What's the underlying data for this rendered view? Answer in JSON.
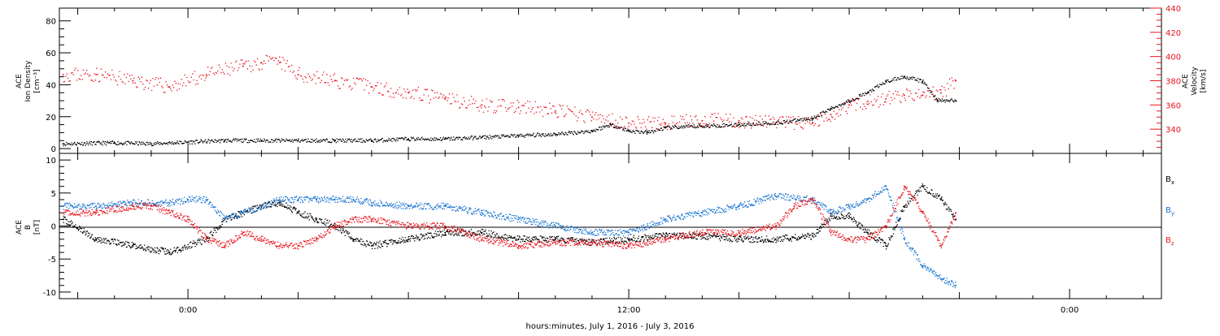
{
  "xaxis": {
    "label": "hours:minutes, July  1, 2016 - July  3, 2016",
    "tick_labels": [
      "0:00",
      "12:00",
      "0:00"
    ],
    "tick_hours": [
      0,
      12,
      24
    ],
    "range_hours": [
      -3.5,
      26.5
    ]
  },
  "chart_data": [
    {
      "type": "scatter",
      "panel": "top",
      "ylabel_left": [
        "ACE",
        "Ion Density",
        "[cm⁻³]"
      ],
      "ylabel_right": [
        "ACE",
        "Velocity",
        "[km/s]"
      ],
      "ylim_left": [
        -3,
        88
      ],
      "ylim_right": [
        320,
        440
      ],
      "left_ticks": [
        0,
        20,
        40,
        60,
        80
      ],
      "right_ticks": [
        340,
        360,
        380,
        400,
        420,
        440
      ],
      "grid": false,
      "series": [
        {
          "axis": "left",
          "color": "#000000",
          "x": [
            -3.4,
            -2,
            -1,
            0,
            1,
            2,
            3,
            4,
            5,
            6,
            7,
            8,
            9,
            10,
            11,
            11.5,
            12,
            12.5,
            13,
            14,
            15,
            16,
            17,
            17.5,
            18,
            18.5,
            19,
            19.5,
            20,
            20.4,
            20.9
          ],
          "y": [
            3,
            3.5,
            3,
            4,
            5,
            5,
            5,
            5,
            5,
            6,
            6,
            7,
            8,
            9,
            11,
            15,
            11,
            10,
            13,
            14,
            15,
            16,
            19,
            25,
            30,
            35,
            42,
            45,
            42,
            30,
            30
          ]
        },
        {
          "axis": "right",
          "color": "#e8141c",
          "x": [
            -3.4,
            -2.5,
            -1.5,
            -0.5,
            0.5,
            1.5,
            2,
            2.5,
            3,
            4,
            5,
            6,
            7,
            8,
            9,
            10,
            11,
            12,
            13,
            14,
            15,
            16,
            17,
            17.5,
            18,
            18.5,
            19,
            19.5,
            20,
            20.5,
            20.9
          ],
          "y": [
            385,
            385,
            380,
            375,
            385,
            392,
            395,
            395,
            385,
            380,
            375,
            370,
            365,
            360,
            358,
            355,
            350,
            345,
            345,
            347,
            347,
            345,
            345,
            352,
            360,
            363,
            365,
            368,
            368,
            370,
            380
          ]
        }
      ]
    },
    {
      "type": "scatter",
      "panel": "bottom",
      "ylabel_left": [
        "ACE",
        "B",
        "[nT]"
      ],
      "ylim": [
        -11,
        11
      ],
      "ticks": [
        -10,
        -5,
        0,
        5,
        10
      ],
      "zero_line": true,
      "grid": false,
      "series": [
        {
          "name": "B",
          "sub": "x",
          "color": "#000000",
          "x": [
            -3.4,
            -2.5,
            -1.5,
            -0.5,
            0.5,
            1,
            1.5,
            2,
            2.5,
            3,
            3.5,
            4,
            4.5,
            5,
            6,
            7,
            8,
            9,
            10,
            11,
            12,
            13,
            14,
            15,
            16,
            17,
            17.5,
            18,
            18.5,
            19,
            19.5,
            20,
            20.5,
            20.9
          ],
          "y": [
            1,
            -2,
            -3,
            -4,
            -2,
            1,
            2,
            3,
            3.5,
            2,
            1,
            0,
            -2,
            -3,
            -2,
            -1,
            -1,
            -2,
            -2,
            -2.5,
            -2,
            -1.5,
            -1.5,
            -2,
            -2,
            -1.5,
            1.5,
            1.5,
            -1,
            -3,
            3,
            6,
            4,
            1
          ]
        },
        {
          "name": "B",
          "sub": "y",
          "color": "#1a75d2",
          "x": [
            -3.4,
            -2.5,
            -1.5,
            -0.5,
            0,
            0.5,
            1,
            1.5,
            2,
            2.5,
            3,
            3.5,
            4,
            4.5,
            5,
            6,
            7,
            8,
            9,
            10,
            11,
            12,
            13,
            14,
            15,
            16,
            17,
            17.5,
            18,
            18.5,
            19,
            19.5,
            20,
            20.5,
            20.9
          ],
          "y": [
            3,
            3,
            3.5,
            3.5,
            4,
            4,
            1,
            2,
            3,
            4,
            4,
            4,
            4,
            4,
            3.5,
            3,
            3,
            2,
            1,
            0,
            -1,
            -1,
            1,
            2,
            3,
            4.5,
            4,
            2,
            3,
            4,
            6,
            -2,
            -6,
            -8,
            -9
          ]
        },
        {
          "name": "B",
          "sub": "z",
          "color": "#e8141c",
          "x": [
            -3.4,
            -2.5,
            -1.5,
            -1,
            -0.5,
            0,
            0.5,
            1,
            1.5,
            2,
            2.5,
            3,
            3.5,
            4,
            4.5,
            5,
            6,
            7,
            8,
            9,
            10,
            11,
            12,
            13,
            14,
            15,
            16,
            16.5,
            17,
            17.5,
            18,
            18.5,
            19,
            19.5,
            20,
            20.5,
            20.9
          ],
          "y": [
            2,
            2,
            3,
            3,
            2,
            1,
            -2,
            -3,
            -1,
            -2,
            -3,
            -3,
            -2,
            0,
            1,
            1,
            0,
            0,
            -2,
            -3,
            -2.5,
            -2.5,
            -3,
            -2,
            -1,
            -1,
            0,
            3,
            4,
            -1,
            -2,
            -2,
            0,
            6,
            2,
            -3,
            2
          ]
        }
      ]
    }
  ]
}
